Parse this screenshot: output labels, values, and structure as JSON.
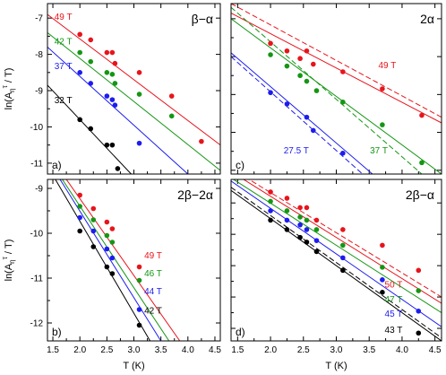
{
  "colors": {
    "red": "#e8141b",
    "green": "#149614",
    "blue": "#1c1cf0",
    "black": "#000000"
  },
  "chart_data": [
    {
      "type": "scatter",
      "title": "β−α",
      "letter": "a)",
      "xlim": [
        1.4,
        4.6
      ],
      "ylim": [
        -11.3,
        -6.6
      ],
      "xticks": [
        1.5,
        2.0,
        2.5,
        3.0,
        3.5,
        4.0,
        4.5
      ],
      "xticklabels": [
        "",
        "",
        "",
        "",
        "",
        "",
        ""
      ],
      "yticks": [
        -7,
        -8,
        -9,
        -10,
        -11
      ],
      "yticklabels": [
        "-7",
        "-8",
        "-9",
        "-10",
        "-11"
      ],
      "ylabel_main": "ln(A",
      "ylabel_sub": "η",
      "ylabel_sup": "τ",
      "ylabel_end": " / T)",
      "xlabel": "",
      "series": [
        {
          "name": "49 T",
          "color": "red",
          "x": [
            2.0,
            2.2,
            2.5,
            2.6,
            2.65,
            3.1,
            3.7,
            4.25
          ],
          "y": [
            -7.45,
            -7.6,
            -7.95,
            -7.95,
            -8.25,
            -8.5,
            -9.15,
            -10.4
          ],
          "fit": [
            [
              1.4,
              -6.9
            ],
            [
              4.6,
              -10.5
            ]
          ],
          "dashed": false
        },
        {
          "name": "42 T",
          "color": "green",
          "x": [
            2.0,
            2.2,
            2.5,
            2.6,
            2.65,
            3.1,
            3.7
          ],
          "y": [
            -7.95,
            -8.2,
            -8.5,
            -8.55,
            -8.8,
            -9.1,
            -9.7
          ],
          "fit": [
            [
              1.4,
              -7.4
            ],
            [
              4.6,
              -11.2
            ]
          ],
          "dashed": false
        },
        {
          "name": "37 T",
          "color": "blue",
          "x": [
            2.0,
            2.2,
            2.5,
            2.6,
            2.65,
            3.1
          ],
          "y": [
            -8.5,
            -8.8,
            -9.15,
            -9.25,
            -9.4,
            -10.45
          ],
          "fit": [
            [
              1.4,
              -7.8
            ],
            [
              4.0,
              -11.3
            ]
          ],
          "dashed": false
        },
        {
          "name": "32 T",
          "color": "black",
          "x": [
            2.0,
            2.2,
            2.5,
            2.6,
            2.7
          ],
          "y": [
            -9.8,
            -10.05,
            -10.5,
            -10.5,
            -11.15
          ],
          "fit": [
            [
              1.4,
              -8.85
            ],
            [
              2.95,
              -11.3
            ]
          ],
          "dashed": false
        }
      ]
    },
    {
      "type": "scatter",
      "title": "2α",
      "letter": "c)",
      "xlim": [
        1.4,
        4.6
      ],
      "ylim": [
        -11.1,
        -6.6
      ],
      "xticks": [
        1.5,
        2.0,
        2.5,
        3.0,
        3.5,
        4.0,
        4.5
      ],
      "xticklabels": [
        "",
        "",
        "",
        "",
        "",
        "",
        ""
      ],
      "yticks": [
        -7,
        -8,
        -9,
        -10,
        -11
      ],
      "yticklabels": [
        "",
        "",
        "",
        "",
        ""
      ],
      "ylabel_main": "",
      "ylabel_sub": "",
      "ylabel_sup": "",
      "ylabel_end": "",
      "xlabel": "",
      "series": [
        {
          "name": "49 T",
          "color": "red",
          "x": [
            2.0,
            2.25,
            2.45,
            2.55,
            2.65,
            3.1,
            3.7,
            4.3
          ],
          "y": [
            -7.65,
            -7.85,
            -8.05,
            -7.85,
            -8.2,
            -8.4,
            -8.85,
            -9.55
          ],
          "fit": [
            [
              1.4,
              -6.85
            ],
            [
              4.6,
              -9.75
            ]
          ],
          "fit2": [
            [
              1.4,
              -6.6
            ],
            [
              4.6,
              -9.6
            ]
          ],
          "dashed": true
        },
        {
          "name": "37 T",
          "color": "green",
          "x": [
            2.0,
            2.25,
            2.45,
            2.55,
            2.7,
            3.1,
            3.7,
            4.3
          ],
          "y": [
            -7.95,
            -8.25,
            -8.5,
            -8.65,
            -8.9,
            -9.2,
            -9.8,
            -10.8
          ],
          "fit": [
            [
              1.4,
              -7.0
            ],
            [
              4.6,
              -11.1
            ]
          ],
          "fit2": [
            [
              1.4,
              -6.7
            ],
            [
              4.3,
              -11.1
            ]
          ],
          "dashed": true
        },
        {
          "name": "27.5 T",
          "color": "blue",
          "x": [
            2.0,
            2.25,
            2.55,
            2.65,
            3.1
          ],
          "y": [
            -8.95,
            -9.25,
            -9.6,
            -9.95,
            -10.55
          ],
          "fit": [
            [
              1.4,
              -7.9
            ],
            [
              3.55,
              -11.1
            ]
          ],
          "fit2": [
            [
              1.4,
              -8.0
            ],
            [
              3.4,
              -11.1
            ]
          ],
          "dashed": true
        }
      ]
    },
    {
      "type": "scatter",
      "title": "2β−2α",
      "letter": "b)",
      "xlim": [
        1.4,
        4.6
      ],
      "ylim": [
        -12.4,
        -8.8
      ],
      "xticks": [
        1.5,
        2.0,
        2.5,
        3.0,
        3.5,
        4.0,
        4.5
      ],
      "xticklabels": [
        "1.5",
        "2.0",
        "2.5",
        "3.0",
        "3.5",
        "4.0",
        "4.5"
      ],
      "yticks": [
        -9,
        -10,
        -11,
        -12
      ],
      "yticklabels": [
        "-9",
        "-10",
        "-11",
        "-12"
      ],
      "ylabel_main": "ln(A",
      "ylabel_sub": "η",
      "ylabel_sup": "τ",
      "ylabel_end": " / T)",
      "xlabel": "T (K)",
      "series": [
        {
          "name": "49 T",
          "color": "red",
          "x": [
            2.0,
            2.25,
            2.5,
            2.6,
            3.1
          ],
          "y": [
            -9.15,
            -9.45,
            -9.75,
            -9.9,
            -10.75
          ],
          "fit": [
            [
              1.4,
              -8.2
            ],
            [
              3.85,
              -12.4
            ]
          ],
          "dashed": false
        },
        {
          "name": "46 T",
          "color": "green",
          "x": [
            2.0,
            2.25,
            2.5,
            2.6,
            3.1
          ],
          "y": [
            -9.4,
            -9.7,
            -10.05,
            -10.2,
            -11.05
          ],
          "fit": [
            [
              1.4,
              -8.3
            ],
            [
              3.65,
              -12.4
            ]
          ],
          "dashed": false
        },
        {
          "name": "44 T",
          "color": "blue",
          "x": [
            2.0,
            2.25,
            2.5,
            2.6,
            3.1
          ],
          "y": [
            -9.65,
            -9.95,
            -10.35,
            -10.55,
            -11.7
          ],
          "fit": [
            [
              1.4,
              -8.35
            ],
            [
              3.5,
              -12.4
            ]
          ],
          "dashed": false
        },
        {
          "name": "42 T",
          "color": "black",
          "x": [
            2.0,
            2.25,
            2.5,
            2.6,
            3.1
          ],
          "y": [
            -9.95,
            -10.3,
            -10.75,
            -10.9,
            -12.05
          ],
          "fit": [
            [
              1.4,
              -8.5
            ],
            [
              3.3,
              -12.4
            ]
          ],
          "dashed": false
        }
      ]
    },
    {
      "type": "scatter",
      "title": "2β−α",
      "letter": "d)",
      "xlim": [
        1.4,
        4.6
      ],
      "ylim": [
        -12.4,
        -7.25
      ],
      "xticks": [
        1.5,
        2.0,
        2.5,
        3.0,
        3.5,
        4.0,
        4.5
      ],
      "xticklabels": [
        "1.5",
        "2.0",
        "2.5",
        "3.0",
        "3.5",
        "4.0",
        "4.5"
      ],
      "yticks": [
        -8,
        -9,
        -10,
        -11,
        -12
      ],
      "yticklabels": [
        "",
        "",
        "",
        "",
        ""
      ],
      "ylabel_main": "",
      "ylabel_sub": "",
      "ylabel_sup": "",
      "ylabel_end": "",
      "xlabel": "T (K)",
      "series": [
        {
          "name": "50 T",
          "color": "red",
          "x": [
            2.0,
            2.25,
            2.45,
            2.55,
            2.7,
            3.1,
            3.7,
            4.25
          ],
          "y": [
            -7.65,
            -7.85,
            -8.15,
            -8.15,
            -8.55,
            -8.85,
            -9.35,
            -10.15
          ],
          "fit": [
            [
              1.4,
              -7.0
            ],
            [
              4.6,
              -11.2
            ]
          ],
          "fit2": [
            [
              1.4,
              -6.9
            ],
            [
              4.6,
              -11.0
            ]
          ],
          "dashed": true
        },
        {
          "name": "47 T",
          "color": "green",
          "x": [
            2.0,
            2.25,
            2.45,
            2.55,
            2.7,
            3.1,
            3.7,
            4.25
          ],
          "y": [
            -7.95,
            -8.25,
            -8.45,
            -8.55,
            -8.85,
            -9.35,
            -10.05,
            -10.8
          ],
          "fit": [
            [
              1.4,
              -7.2
            ],
            [
              4.6,
              -11.5
            ]
          ],
          "dashed": false
        },
        {
          "name": "45 T",
          "color": "blue",
          "x": [
            2.0,
            2.25,
            2.45,
            2.55,
            2.7,
            3.1,
            3.7,
            4.25
          ],
          "y": [
            -8.25,
            -8.55,
            -8.7,
            -8.85,
            -9.2,
            -9.75,
            -10.45,
            -11.45
          ],
          "fit": [
            [
              1.4,
              -7.3
            ],
            [
              4.6,
              -11.95
            ]
          ],
          "dashed": false
        },
        {
          "name": "43 T",
          "color": "black",
          "x": [
            2.0,
            2.25,
            2.45,
            2.55,
            2.7,
            3.1,
            3.7,
            4.25
          ],
          "y": [
            -8.55,
            -8.85,
            -9.1,
            -9.25,
            -9.55,
            -10.15,
            -10.85,
            -12.15
          ],
          "fit": [
            [
              1.4,
              -7.6
            ],
            [
              4.6,
              -12.4
            ]
          ],
          "fit2": [
            [
              1.4,
              -7.5
            ],
            [
              4.6,
              -12.3
            ]
          ],
          "dashed": true
        }
      ]
    }
  ]
}
